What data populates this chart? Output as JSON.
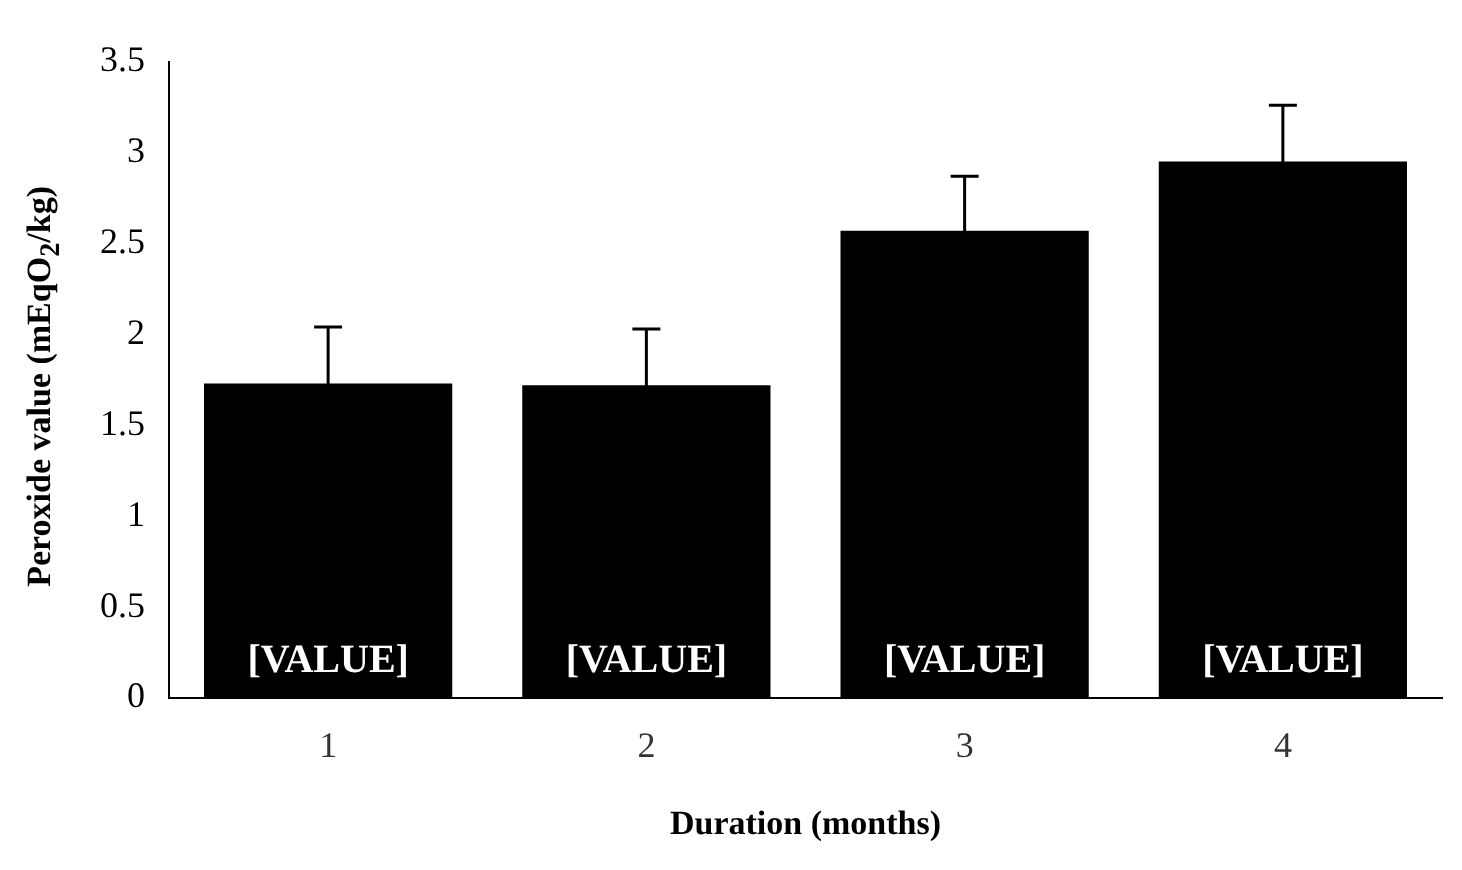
{
  "chart_data": {
    "type": "bar",
    "xlabel": "Duration (months)",
    "ylabel": "Peroxide value  (mEqO$_{2}$/kg)",
    "categories": [
      "1",
      "2",
      "3",
      "4"
    ],
    "values": [
      1.73,
      1.72,
      2.57,
      2.95
    ],
    "errors": [
      0.31,
      0.31,
      0.3,
      0.31
    ],
    "value_labels": [
      "[VALUE]",
      "[VALUE]",
      "[VALUE]",
      "[VALUE]"
    ],
    "color": "#000000",
    "ylim": [
      0,
      3.5
    ],
    "yticks": [
      0,
      0.5,
      1,
      1.5,
      2,
      2.5,
      3,
      3.5
    ],
    "grid": false,
    "legend": false
  }
}
